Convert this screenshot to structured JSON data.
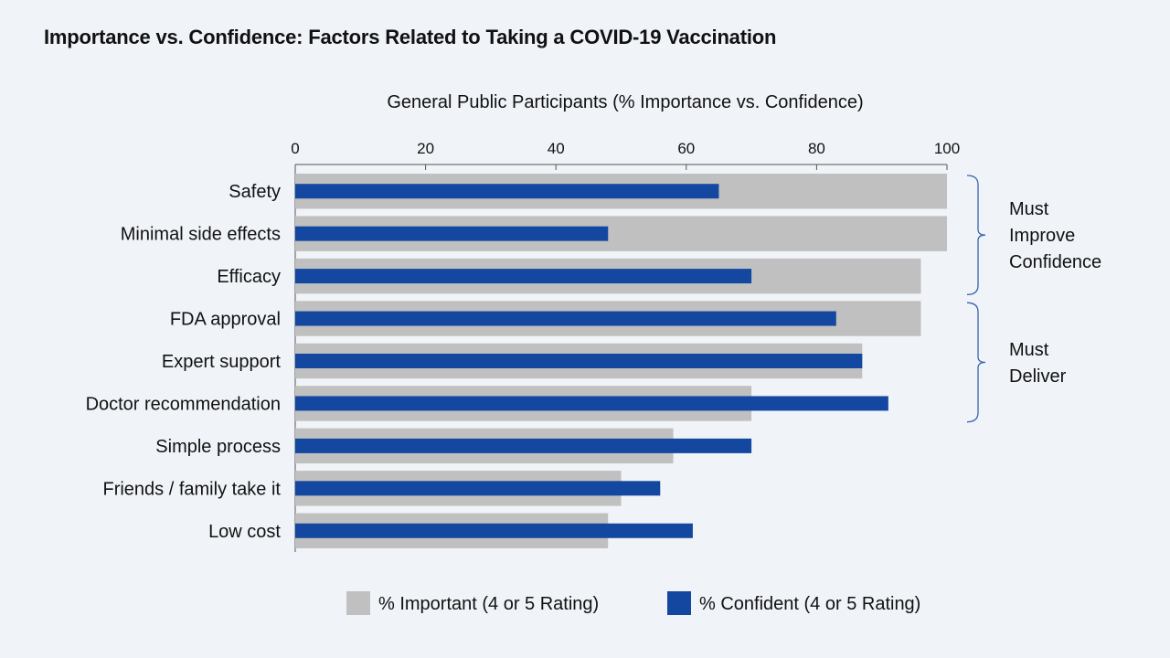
{
  "title": "Importance vs. Confidence: Factors Related to Taking a COVID-19 Vaccination",
  "chart_data": {
    "type": "bar",
    "orientation": "horizontal",
    "axis_title": "General Public Participants (% Importance vs. Confidence)",
    "xlim": [
      0,
      100
    ],
    "ticks": [
      0,
      20,
      40,
      60,
      80,
      100
    ],
    "categories": [
      "Safety",
      "Minimal side effects",
      "Efficacy",
      "FDA approval",
      "Expert support",
      "Doctor recommendation",
      "Simple process",
      "Friends / family take it",
      "Low cost"
    ],
    "series": [
      {
        "name": "% Important (4 or 5 Rating)",
        "color": "#c0c0c0",
        "values": [
          100,
          100,
          96,
          96,
          87,
          70,
          58,
          50,
          48
        ]
      },
      {
        "name": "% Confident (4 or 5 Rating)",
        "color": "#1448a0",
        "values": [
          65,
          48,
          70,
          83,
          87,
          91,
          70,
          56,
          61
        ]
      }
    ],
    "groups": [
      {
        "lines": [
          "Must",
          "Improve",
          "Confidence"
        ],
        "from": 0,
        "to": 2
      },
      {
        "lines": [
          "Must",
          "Deliver"
        ],
        "from": 3,
        "to": 5
      }
    ],
    "legend_position": "bottom",
    "grid": false
  }
}
